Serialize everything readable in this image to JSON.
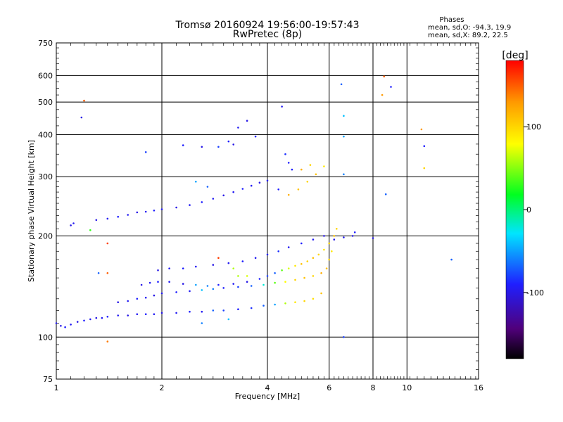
{
  "chart_data": {
    "type": "scatter",
    "title": "Tromsø 20160924 19:56:00-19:57:43",
    "subtitle": "RwPretec (8p)",
    "xlabel": "Frequency [MHz]",
    "ylabel": "Stationary phase Virtual Height [km]",
    "x_scale": "log",
    "y_scale": "log",
    "xlim": [
      1,
      16
    ],
    "ylim": [
      75,
      750
    ],
    "x_ticks": [
      1,
      2,
      4,
      6,
      8,
      10,
      16
    ],
    "x_tick_labels": [
      "1",
      "2",
      "4",
      "6",
      "8",
      "10",
      "16"
    ],
    "y_ticks": [
      75,
      100,
      200,
      300,
      400,
      500,
      600,
      750
    ],
    "y_tick_labels": [
      "75",
      "100",
      "200",
      "300",
      "400",
      "500",
      "600",
      "750"
    ],
    "grid": true,
    "stats": {
      "heading": "Phases",
      "line_o": "mean, sd,O: -94.3, 19.9",
      "line_x": "mean, sd,X:  89.2, 22.5"
    },
    "colorbar": {
      "label": "[deg]",
      "range": [
        -180,
        180
      ],
      "ticks": [
        100,
        0,
        -100
      ],
      "tick_labels": [
        "100",
        "0",
        "-100"
      ]
    },
    "series": [
      {
        "points": [
          [
            1.0,
            110,
            -95
          ],
          [
            1.03,
            108,
            -100
          ],
          [
            1.06,
            107,
            -90
          ],
          [
            1.1,
            109,
            -95
          ],
          [
            1.15,
            111,
            -100
          ],
          [
            1.2,
            112,
            -90
          ],
          [
            1.25,
            113,
            -95
          ],
          [
            1.3,
            114,
            -100
          ],
          [
            1.35,
            114,
            -95
          ],
          [
            1.4,
            115,
            -90
          ],
          [
            1.5,
            116,
            -95
          ],
          [
            1.6,
            116,
            -100
          ],
          [
            1.7,
            117,
            -95
          ],
          [
            1.8,
            117,
            -90
          ],
          [
            1.9,
            117,
            -95
          ],
          [
            2.0,
            118,
            -100
          ],
          [
            2.2,
            118,
            -95
          ],
          [
            2.4,
            119,
            -90
          ],
          [
            2.6,
            119,
            -95
          ],
          [
            2.8,
            120,
            -70
          ],
          [
            3.0,
            120,
            -80
          ],
          [
            3.3,
            121,
            -90
          ],
          [
            3.6,
            122,
            -85
          ],
          [
            3.9,
            124,
            -70
          ],
          [
            4.2,
            125,
            -50
          ],
          [
            4.5,
            126,
            60
          ],
          [
            4.8,
            127,
            90
          ],
          [
            5.1,
            128,
            100
          ],
          [
            5.4,
            130,
            95
          ],
          [
            5.7,
            135,
            110
          ]
        ]
      },
      {
        "points": [
          [
            1.5,
            127,
            -100
          ],
          [
            1.6,
            128,
            -95
          ],
          [
            1.7,
            130,
            -90
          ],
          [
            1.8,
            131,
            -95
          ],
          [
            1.9,
            133,
            -100
          ],
          [
            2.0,
            135,
            -95
          ],
          [
            2.2,
            136,
            -90
          ],
          [
            2.4,
            137,
            -95
          ],
          [
            2.6,
            138,
            -40
          ],
          [
            2.8,
            139,
            -60
          ],
          [
            3.0,
            140,
            -90
          ],
          [
            3.3,
            141,
            -80
          ],
          [
            3.6,
            142,
            -70
          ],
          [
            3.9,
            143,
            -20
          ],
          [
            4.2,
            145,
            40
          ],
          [
            4.5,
            146,
            80
          ],
          [
            4.8,
            148,
            100
          ],
          [
            5.1,
            150,
            110
          ],
          [
            5.4,
            152,
            100
          ],
          [
            5.7,
            155,
            120
          ],
          [
            5.9,
            160,
            110
          ],
          [
            6.0,
            170,
            100
          ],
          [
            6.1,
            180,
            90
          ]
        ]
      },
      {
        "points": [
          [
            1.75,
            143,
            -100
          ],
          [
            1.85,
            145,
            -95
          ],
          [
            1.95,
            146,
            -90
          ],
          [
            2.1,
            146,
            -95
          ],
          [
            2.3,
            144,
            -100
          ],
          [
            2.5,
            143,
            -50
          ],
          [
            2.7,
            142,
            -60
          ],
          [
            2.9,
            143,
            -90
          ],
          [
            3.2,
            144,
            -95
          ],
          [
            3.5,
            146,
            -100
          ],
          [
            3.8,
            149,
            -90
          ],
          [
            4.0,
            152,
            -80
          ],
          [
            4.2,
            155,
            -70
          ],
          [
            4.4,
            158,
            40
          ],
          [
            4.6,
            160,
            70
          ],
          [
            4.8,
            163,
            90
          ],
          [
            5.0,
            165,
            110
          ],
          [
            5.2,
            168,
            100
          ],
          [
            5.4,
            172,
            110
          ],
          [
            5.6,
            176,
            100
          ],
          [
            5.8,
            182,
            90
          ],
          [
            6.0,
            190,
            100
          ],
          [
            6.2,
            200,
            110
          ],
          [
            6.3,
            210,
            100
          ]
        ]
      },
      {
        "points": [
          [
            1.95,
            158,
            -100
          ],
          [
            2.1,
            160,
            -95
          ],
          [
            2.3,
            160,
            -90
          ],
          [
            2.5,
            162,
            -95
          ],
          [
            2.8,
            164,
            -100
          ],
          [
            3.1,
            166,
            -95
          ],
          [
            3.4,
            168,
            -90
          ],
          [
            3.7,
            172,
            -95
          ],
          [
            4.0,
            176,
            -90
          ],
          [
            4.3,
            180,
            -85
          ],
          [
            4.6,
            185,
            -95
          ],
          [
            5.0,
            190,
            -90
          ],
          [
            5.4,
            195,
            -95
          ],
          [
            5.8,
            200,
            -100
          ],
          [
            6.2,
            195,
            -100
          ],
          [
            6.6,
            198,
            -95
          ],
          [
            7.0,
            200,
            -100
          ],
          [
            7.1,
            205,
            -90
          ]
        ]
      },
      {
        "points": [
          [
            1.3,
            223,
            -100
          ],
          [
            1.4,
            225,
            -95
          ],
          [
            1.5,
            228,
            -90
          ],
          [
            1.6,
            231,
            -95
          ],
          [
            1.7,
            235,
            -100
          ],
          [
            1.8,
            236,
            -95
          ],
          [
            1.9,
            238,
            -90
          ],
          [
            2.0,
            240,
            -95
          ],
          [
            2.2,
            243,
            -100
          ],
          [
            2.4,
            247,
            -95
          ],
          [
            2.6,
            252,
            -90
          ],
          [
            2.8,
            258,
            -95
          ],
          [
            3.0,
            264,
            -100
          ],
          [
            3.2,
            270,
            -95
          ],
          [
            3.4,
            276,
            -90
          ],
          [
            3.6,
            282,
            -95
          ],
          [
            3.8,
            288,
            -100
          ],
          [
            4.0,
            292,
            -95
          ],
          [
            4.3,
            275,
            -90
          ],
          [
            4.6,
            265,
            120
          ],
          [
            4.9,
            275,
            110
          ],
          [
            5.2,
            290,
            100
          ],
          [
            5.5,
            305,
            110
          ],
          [
            5.8,
            322,
            90
          ]
        ]
      },
      {
        "points": [
          [
            1.1,
            215,
            -100
          ],
          [
            1.12,
            218,
            -95
          ],
          [
            1.25,
            208,
            30
          ],
          [
            1.4,
            190,
            160
          ],
          [
            1.32,
            155,
            -70
          ],
          [
            1.4,
            155,
            150
          ],
          [
            1.4,
            97,
            140
          ],
          [
            1.18,
            450,
            -100
          ],
          [
            1.2,
            505,
            150
          ],
          [
            1.8,
            355,
            -80
          ],
          [
            2.3,
            372,
            -90
          ],
          [
            2.6,
            368,
            -100
          ],
          [
            2.9,
            368,
            -80
          ],
          [
            3.1,
            382,
            -90
          ],
          [
            3.2,
            374,
            -100
          ],
          [
            3.3,
            420,
            -95
          ],
          [
            3.5,
            440,
            -100
          ],
          [
            3.7,
            395,
            -90
          ],
          [
            4.4,
            485,
            -95
          ],
          [
            4.5,
            350,
            -85
          ],
          [
            4.6,
            330,
            -90
          ],
          [
            4.7,
            315,
            -90
          ],
          [
            5.0,
            315,
            120
          ],
          [
            5.3,
            325,
            100
          ],
          [
            6.5,
            565,
            -70
          ],
          [
            6.6,
            455,
            -40
          ],
          [
            6.6,
            395,
            -50
          ],
          [
            6.6,
            305,
            -60
          ],
          [
            6.6,
            100,
            -80
          ],
          [
            8.0,
            197,
            -100
          ],
          [
            8.5,
            525,
            130
          ],
          [
            8.6,
            596,
            150
          ],
          [
            9.0,
            555,
            -90
          ],
          [
            8.7,
            266,
            -70
          ],
          [
            11.0,
            415,
            130
          ],
          [
            11.2,
            370,
            -90
          ],
          [
            11.2,
            318,
            100
          ],
          [
            13.4,
            170,
            -70
          ],
          [
            2.6,
            110,
            -60
          ],
          [
            3.1,
            113,
            -40
          ],
          [
            3.2,
            160,
            60
          ],
          [
            3.3,
            152,
            60
          ],
          [
            3.5,
            152,
            70
          ],
          [
            2.9,
            172,
            160
          ],
          [
            2.5,
            290,
            -50
          ],
          [
            2.7,
            280,
            -70
          ]
        ]
      }
    ]
  }
}
